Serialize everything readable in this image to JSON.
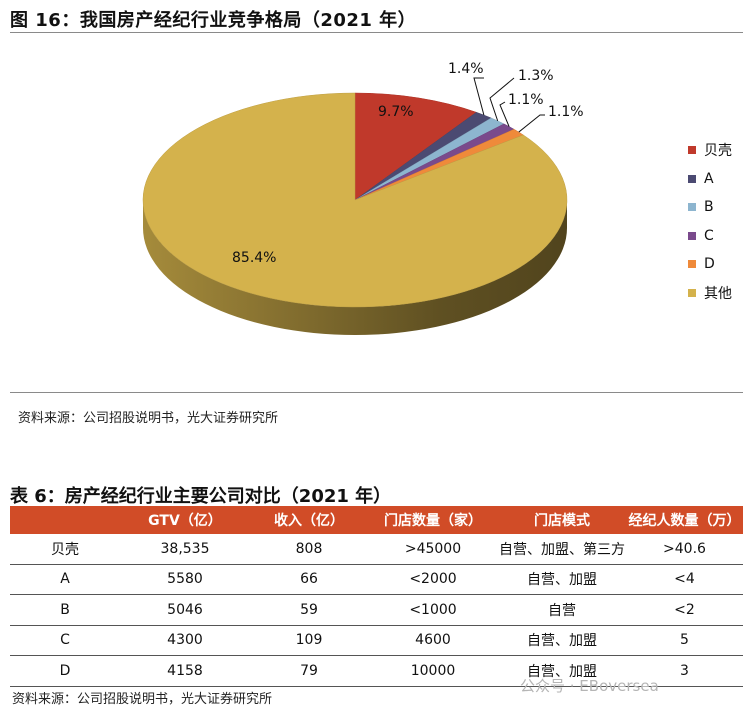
{
  "figure_title": "图 16：我国房产经纪行业竞争格局（2021 年）",
  "source_1": "资料来源：公司招股说明书，光大证券研究所",
  "chart_data": {
    "type": "pie",
    "title": "",
    "labels": [
      "贝壳",
      "A",
      "B",
      "C",
      "D",
      "其他"
    ],
    "values": [
      9.7,
      1.4,
      1.3,
      1.1,
      1.1,
      85.4
    ],
    "value_labels": [
      "9.7%",
      "1.4%",
      "1.3%",
      "1.1%",
      "1.1%",
      "85.4%"
    ],
    "colors": [
      "#c0392b",
      "#4b4a72",
      "#8db5cf",
      "#7a4a8c",
      "#ef8a3a",
      "#d4b24c"
    ],
    "legend_position": "right",
    "style": "3d"
  },
  "table": {
    "title": "表 6：房产经纪行业主要公司对比（2021 年）",
    "headers": [
      "",
      "GTV（亿）",
      "收入（亿）",
      "门店数量（家）",
      "门店模式",
      "经纪人数量（万）"
    ],
    "rows": [
      [
        "贝壳",
        "38,535",
        "808",
        ">45000",
        "自营、加盟、第三方",
        ">40.6"
      ],
      [
        "A",
        "5580",
        "66",
        "<2000",
        "自营、加盟",
        "<4"
      ],
      [
        "B",
        "5046",
        "59",
        "<1000",
        "自营",
        "<2"
      ],
      [
        "C",
        "4300",
        "109",
        "4600",
        "自营、加盟",
        "5"
      ],
      [
        "D",
        "4158",
        "79",
        "10000",
        "自营、加盟",
        "3"
      ]
    ]
  },
  "source_2": "资料来源：公司招股说明书，光大证券研究所",
  "watermark": "公众号 · EBoversea"
}
